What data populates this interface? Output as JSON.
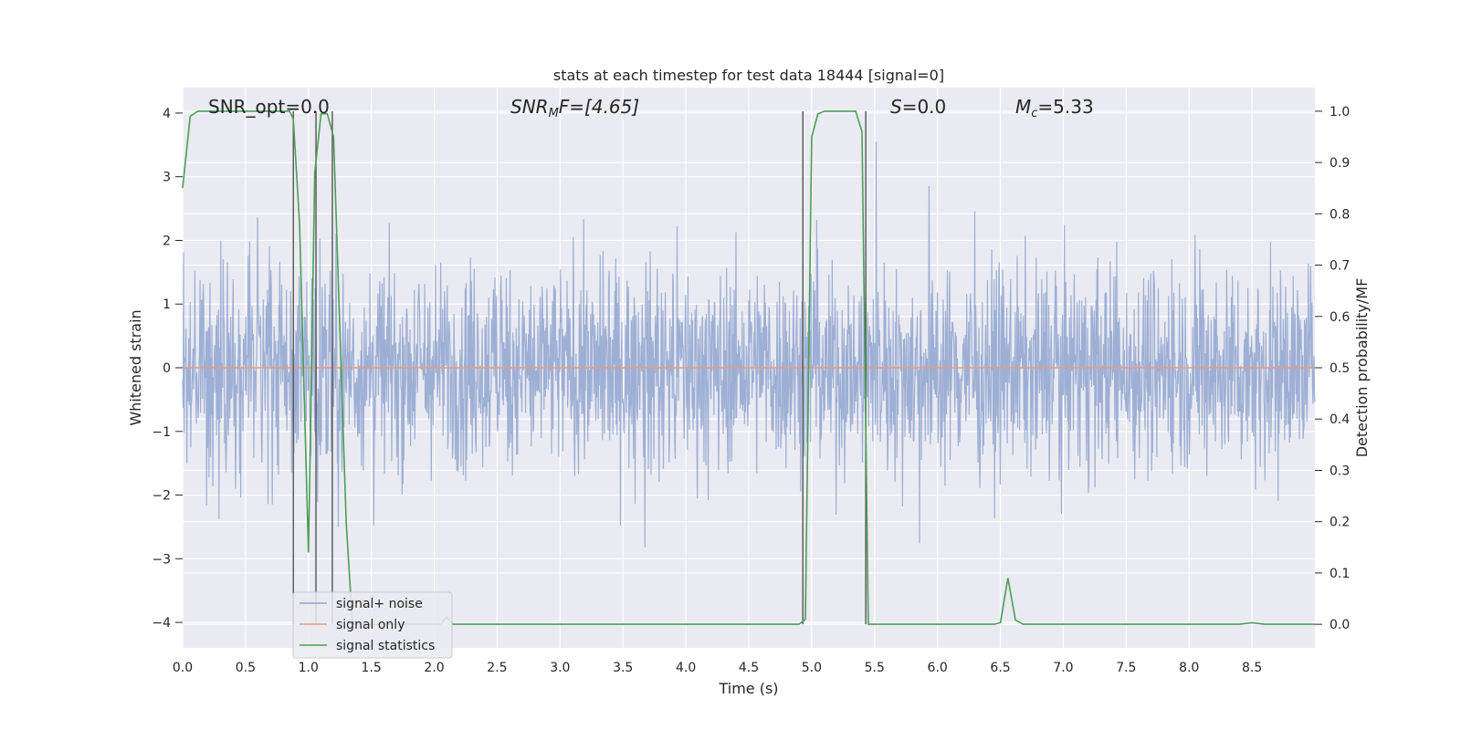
{
  "chart_data": {
    "type": "line",
    "title": "stats at each timestep for test data 18444 [signal=0]",
    "xlabel": "Time (s)",
    "ylabel": "Whitened strain",
    "y2label": "Detection probability/MF",
    "xlim": [
      0,
      9
    ],
    "ylim": [
      -4.4,
      4.4
    ],
    "y2lim": [
      -0.046,
      1.046
    ],
    "xticks": [
      "0.0",
      "0.5",
      "1.0",
      "1.5",
      "2.0",
      "2.5",
      "3.0",
      "3.5",
      "4.0",
      "4.5",
      "5.0",
      "5.5",
      "6.0",
      "6.5",
      "7.0",
      "7.5",
      "8.0",
      "8.5"
    ],
    "yticks": [
      "4",
      "3",
      "2",
      "1",
      "0",
      "−1",
      "−2",
      "−3",
      "−4"
    ],
    "y2ticks": [
      "1.0",
      "0.9",
      "0.8",
      "0.7",
      "0.6",
      "0.5",
      "0.4",
      "0.3",
      "0.2",
      "0.1",
      "0.0"
    ],
    "grid": true,
    "legend_position": "lower-left",
    "annotations": {
      "snr_opt": "SNR_opt=0.0",
      "snr_mf_base": "SNR",
      "snr_mf_sub": "M",
      "snr_mf_rest": "F=[4.65]",
      "s_base": "S",
      "s_rest": "=0.0",
      "mc_base": "M",
      "mc_sub": "c",
      "mc_rest": "=5.33"
    },
    "series": [
      {
        "name": "signal+ noise",
        "color": "#8fa5cf",
        "style": "noise",
        "amplitude_envelope": [
          -4.0,
          4.0
        ]
      },
      {
        "name": "signal only",
        "color": "#e79a7f",
        "x": [
          0,
          9
        ],
        "y": [
          0,
          0
        ]
      },
      {
        "name": "signal statistics",
        "color": "#4a9f55",
        "axis": "right",
        "x": [
          0.0,
          0.06,
          0.12,
          0.5,
          0.85,
          0.88,
          0.93,
          1.0,
          1.05,
          1.1,
          1.15,
          1.2,
          1.3,
          1.35,
          2.0,
          2.05,
          2.1,
          2.15,
          2.2,
          3.0,
          4.0,
          4.9,
          4.95,
          5.0,
          5.05,
          5.1,
          5.35,
          5.4,
          5.45,
          5.5,
          5.55,
          6.0,
          6.45,
          6.5,
          6.56,
          6.62,
          6.68,
          7.0,
          8.0,
          8.4,
          8.5,
          8.6,
          9.0
        ],
        "y": [
          0.85,
          0.99,
          1.0,
          1.0,
          1.0,
          0.985,
          0.78,
          0.14,
          0.88,
          0.995,
          0.995,
          0.95,
          0.2,
          0.0,
          0.0,
          0.0,
          0.015,
          0.0,
          0.0,
          0.0,
          0.0,
          0.0,
          0.01,
          0.95,
          0.995,
          1.0,
          1.0,
          0.96,
          0.0,
          0.0,
          0.0,
          0.0,
          0.0,
          0.003,
          0.09,
          0.008,
          0.0,
          0.0,
          0.0,
          0.0,
          0.003,
          0.0,
          0.0
        ]
      }
    ],
    "vertical_markers": [
      0.88,
      1.06,
      1.19,
      4.93,
      5.43
    ]
  }
}
